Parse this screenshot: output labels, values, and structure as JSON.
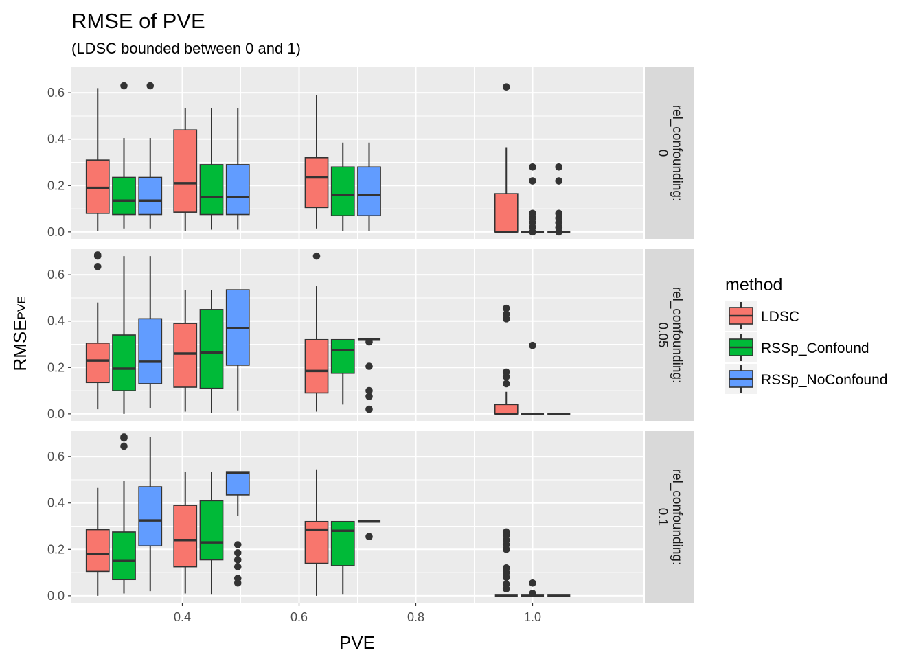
{
  "chart_data": {
    "type": "boxplot",
    "title": "RMSE of PVE",
    "subtitle": "(LDSC bounded between 0 and 1)",
    "xlabel": "PVE",
    "ylabel": "RMSE",
    "ylabel_sub": "PVE",
    "xlim": [
      0.21,
      1.19
    ],
    "ylim": [
      -0.03,
      0.71
    ],
    "x_ticks": [
      0.4,
      0.6,
      0.8,
      1.0
    ],
    "x_tick_labels": [
      "0.4",
      "0.6",
      "0.8",
      "1.0"
    ],
    "y_ticks": [
      0.0,
      0.2,
      0.4,
      0.6
    ],
    "y_tick_labels": [
      "0.0",
      "0.2",
      "0.4",
      "0.6"
    ],
    "groups": [
      0.3,
      0.45,
      0.675,
      1.0
    ],
    "legend": {
      "title": "method",
      "position": "right",
      "entries": [
        {
          "label": "LDSC",
          "color": "#F8766D"
        },
        {
          "label": "RSSp_Confound",
          "color": "#00BA38"
        },
        {
          "label": "RSSp_NoConfound",
          "color": "#619CFF"
        }
      ]
    },
    "panels": [
      {
        "strip_label": [
          "rel_confounding:",
          "0"
        ],
        "boxes": [
          {
            "method": 0,
            "group": 0.3,
            "min": 0.005,
            "q1": 0.08,
            "median": 0.19,
            "q3": 0.31,
            "max": 0.62,
            "outliers": []
          },
          {
            "method": 1,
            "group": 0.3,
            "min": 0.015,
            "q1": 0.075,
            "median": 0.135,
            "q3": 0.235,
            "max": 0.405,
            "outliers": [
              0.63
            ]
          },
          {
            "method": 2,
            "group": 0.3,
            "min": 0.015,
            "q1": 0.075,
            "median": 0.135,
            "q3": 0.235,
            "max": 0.405,
            "outliers": [
              0.63
            ]
          },
          {
            "method": 0,
            "group": 0.45,
            "min": 0.005,
            "q1": 0.085,
            "median": 0.21,
            "q3": 0.44,
            "max": 0.535,
            "outliers": []
          },
          {
            "method": 1,
            "group": 0.45,
            "min": 0.01,
            "q1": 0.075,
            "median": 0.15,
            "q3": 0.29,
            "max": 0.535,
            "outliers": []
          },
          {
            "method": 2,
            "group": 0.45,
            "min": 0.01,
            "q1": 0.075,
            "median": 0.15,
            "q3": 0.29,
            "max": 0.535,
            "outliers": []
          },
          {
            "method": 0,
            "group": 0.675,
            "min": 0.015,
            "q1": 0.105,
            "median": 0.235,
            "q3": 0.32,
            "max": 0.59,
            "outliers": []
          },
          {
            "method": 1,
            "group": 0.675,
            "min": 0.005,
            "q1": 0.07,
            "median": 0.16,
            "q3": 0.28,
            "max": 0.385,
            "outliers": []
          },
          {
            "method": 2,
            "group": 0.675,
            "min": 0.005,
            "q1": 0.07,
            "median": 0.16,
            "q3": 0.28,
            "max": 0.385,
            "outliers": []
          },
          {
            "method": 0,
            "group": 1.0,
            "min": 0.0,
            "q1": 0.0,
            "median": 0.0,
            "q3": 0.165,
            "max": 0.365,
            "outliers": [
              0.625
            ]
          },
          {
            "method": 1,
            "group": 1.0,
            "min": 0.0,
            "q1": 0.0,
            "median": 0.0,
            "q3": 0.0,
            "max": 0.0,
            "outliers": [
              0.0,
              0.02,
              0.04,
              0.06,
              0.08,
              0.22,
              0.28
            ]
          },
          {
            "method": 2,
            "group": 1.0,
            "min": 0.0,
            "q1": 0.0,
            "median": 0.0,
            "q3": 0.0,
            "max": 0.0,
            "outliers": [
              0.0,
              0.02,
              0.04,
              0.06,
              0.08,
              0.22,
              0.28
            ]
          }
        ]
      },
      {
        "strip_label": [
          "rel_confounding:",
          "0.05"
        ],
        "boxes": [
          {
            "method": 0,
            "group": 0.3,
            "min": 0.02,
            "q1": 0.135,
            "median": 0.23,
            "q3": 0.305,
            "max": 0.48,
            "outliers": [
              0.635,
              0.68,
              0.685
            ]
          },
          {
            "method": 1,
            "group": 0.3,
            "min": 0.0,
            "q1": 0.1,
            "median": 0.195,
            "q3": 0.34,
            "max": 0.68,
            "outliers": []
          },
          {
            "method": 2,
            "group": 0.3,
            "min": 0.025,
            "q1": 0.13,
            "median": 0.225,
            "q3": 0.41,
            "max": 0.68,
            "outliers": []
          },
          {
            "method": 0,
            "group": 0.45,
            "min": 0.01,
            "q1": 0.115,
            "median": 0.26,
            "q3": 0.39,
            "max": 0.535,
            "outliers": []
          },
          {
            "method": 1,
            "group": 0.45,
            "min": 0.005,
            "q1": 0.11,
            "median": 0.265,
            "q3": 0.45,
            "max": 0.535,
            "outliers": []
          },
          {
            "method": 2,
            "group": 0.45,
            "min": 0.015,
            "q1": 0.21,
            "median": 0.37,
            "q3": 0.535,
            "max": 0.535,
            "outliers": []
          },
          {
            "method": 0,
            "group": 0.675,
            "min": 0.01,
            "q1": 0.09,
            "median": 0.185,
            "q3": 0.32,
            "max": 0.55,
            "outliers": [
              0.68
            ]
          },
          {
            "method": 1,
            "group": 0.675,
            "min": 0.04,
            "q1": 0.175,
            "median": 0.275,
            "q3": 0.32,
            "max": 0.32,
            "outliers": []
          },
          {
            "method": 2,
            "group": 0.675,
            "min": 0.32,
            "q1": 0.32,
            "median": 0.32,
            "q3": 0.32,
            "max": 0.32,
            "outliers": [
              0.02,
              0.075,
              0.1,
              0.205,
              0.31
            ]
          },
          {
            "method": 0,
            "group": 1.0,
            "min": 0.0,
            "q1": 0.0,
            "median": 0.0,
            "q3": 0.04,
            "max": 0.095,
            "outliers": [
              0.13,
              0.16,
              0.18,
              0.41,
              0.43,
              0.455
            ]
          },
          {
            "method": 1,
            "group": 1.0,
            "min": 0.0,
            "q1": 0.0,
            "median": 0.0,
            "q3": 0.0,
            "max": 0.0,
            "outliers": [
              0.295
            ]
          },
          {
            "method": 2,
            "group": 1.0,
            "min": 0.0,
            "q1": 0.0,
            "median": 0.0,
            "q3": 0.0,
            "max": 0.0,
            "outliers": []
          }
        ]
      },
      {
        "strip_label": [
          "rel_confounding:",
          "0.1"
        ],
        "boxes": [
          {
            "method": 0,
            "group": 0.3,
            "min": 0.0,
            "q1": 0.105,
            "median": 0.18,
            "q3": 0.285,
            "max": 0.465,
            "outliers": []
          },
          {
            "method": 1,
            "group": 0.3,
            "min": 0.01,
            "q1": 0.07,
            "median": 0.15,
            "q3": 0.275,
            "max": 0.495,
            "outliers": [
              0.645,
              0.68,
              0.685
            ]
          },
          {
            "method": 2,
            "group": 0.3,
            "min": 0.02,
            "q1": 0.215,
            "median": 0.325,
            "q3": 0.47,
            "max": 0.685,
            "outliers": []
          },
          {
            "method": 0,
            "group": 0.45,
            "min": 0.01,
            "q1": 0.125,
            "median": 0.24,
            "q3": 0.39,
            "max": 0.535,
            "outliers": []
          },
          {
            "method": 1,
            "group": 0.45,
            "min": 0.005,
            "q1": 0.155,
            "median": 0.23,
            "q3": 0.41,
            "max": 0.535,
            "outliers": []
          },
          {
            "method": 2,
            "group": 0.45,
            "min": 0.345,
            "q1": 0.435,
            "median": 0.53,
            "q3": 0.535,
            "max": 0.535,
            "outliers": [
              0.055,
              0.075,
              0.125,
              0.155,
              0.185,
              0.22
            ]
          },
          {
            "method": 0,
            "group": 0.675,
            "min": 0.0,
            "q1": 0.14,
            "median": 0.285,
            "q3": 0.32,
            "max": 0.545,
            "outliers": []
          },
          {
            "method": 1,
            "group": 0.675,
            "min": 0.005,
            "q1": 0.13,
            "median": 0.28,
            "q3": 0.32,
            "max": 0.32,
            "outliers": []
          },
          {
            "method": 2,
            "group": 0.675,
            "min": 0.32,
            "q1": 0.32,
            "median": 0.32,
            "q3": 0.32,
            "max": 0.32,
            "outliers": [
              0.255
            ]
          },
          {
            "method": 0,
            "group": 1.0,
            "min": 0.0,
            "q1": 0.0,
            "median": 0.0,
            "q3": 0.0,
            "max": 0.0,
            "outliers": [
              0.03,
              0.05,
              0.08,
              0.1,
              0.12,
              0.2,
              0.22,
              0.24,
              0.26,
              0.275
            ]
          },
          {
            "method": 1,
            "group": 1.0,
            "min": 0.0,
            "q1": 0.0,
            "median": 0.0,
            "q3": 0.0,
            "max": 0.0,
            "outliers": [
              0.01,
              0.055
            ]
          },
          {
            "method": 2,
            "group": 1.0,
            "min": 0.0,
            "q1": 0.0,
            "median": 0.0,
            "q3": 0.0,
            "max": 0.0,
            "outliers": []
          }
        ]
      }
    ]
  }
}
